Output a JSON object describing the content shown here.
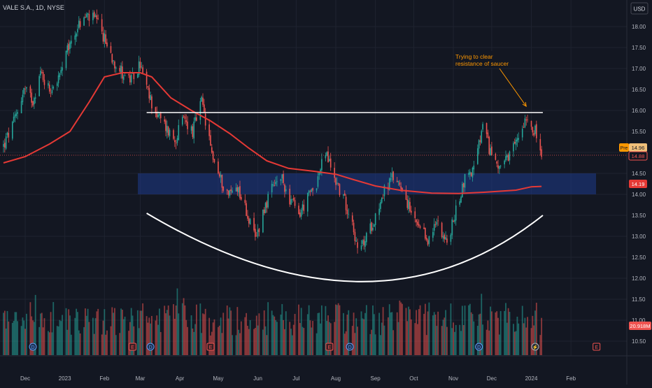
{
  "header": {
    "symbol": "VALE S.A., 1D, NYSE",
    "currency": "USD"
  },
  "annotation": {
    "line1": "Trying to clear",
    "line2": "resistance of saucer"
  },
  "price_tags": {
    "pre_label": "Pre",
    "pre_value": "14.96",
    "last_value": "14.88",
    "ma_value": "14.19",
    "volume_value": "20.918M"
  },
  "colors": {
    "background": "#131722",
    "up": "#26a69a",
    "down": "#ef5350",
    "moving_average": "#e53935",
    "zone_fill": "#1e3a8a",
    "grid": "#1f2330",
    "annotation": "#ff9800",
    "text": "#b2b5be"
  },
  "event_markers": {
    "dividend": "D",
    "earnings": "E",
    "split": "⚡",
    "dividend_dates": [
      "2022-12-07",
      "2023-03-09",
      "2023-08-12",
      "2023-11-21"
    ],
    "earnings_dates": [
      "2023-02-23",
      "2023-04-25",
      "2023-07-27"
    ],
    "split_dates": [
      "2024-01-04"
    ],
    "future_earnings_dates": [
      "2024-02-21"
    ]
  },
  "chart_data": {
    "type": "candlestick",
    "symbol": "VALE S.A.",
    "interval": "1D",
    "exchange": "NYSE",
    "y_range": [
      10.3,
      18.5
    ],
    "x_range": [
      "2022-11-14",
      "2024-02-25"
    ],
    "y_ticks": [
      10.5,
      11.0,
      11.5,
      12.0,
      12.5,
      13.0,
      13.5,
      14.0,
      14.5,
      15.0,
      15.5,
      16.0,
      16.5,
      17.0,
      17.5,
      18.0
    ],
    "x_ticks": [
      {
        "label": "Dec",
        "date": "2022-12-01"
      },
      {
        "label": "2023",
        "date": "2023-01-01"
      },
      {
        "label": "Feb",
        "date": "2023-02-01"
      },
      {
        "label": "Mar",
        "date": "2023-03-01"
      },
      {
        "label": "Apr",
        "date": "2023-04-01"
      },
      {
        "label": "May",
        "date": "2023-05-01"
      },
      {
        "label": "Jun",
        "date": "2023-06-01"
      },
      {
        "label": "Jul",
        "date": "2023-07-01"
      },
      {
        "label": "Aug",
        "date": "2023-08-01"
      },
      {
        "label": "Sep",
        "date": "2023-09-01"
      },
      {
        "label": "Oct",
        "date": "2023-10-01"
      },
      {
        "label": "Nov",
        "date": "2023-11-01"
      },
      {
        "label": "Dec",
        "date": "2023-12-01"
      },
      {
        "label": "2024",
        "date": "2024-01-01"
      },
      {
        "label": "Feb",
        "date": "2024-02-01"
      }
    ],
    "price_path": [
      [
        "2022-11-14",
        15.15
      ],
      [
        "2022-11-22",
        15.7
      ],
      [
        "2022-11-30",
        16.5
      ],
      [
        "2022-12-07",
        16.25
      ],
      [
        "2022-12-13",
        16.9
      ],
      [
        "2022-12-20",
        16.5
      ],
      [
        "2022-12-28",
        16.8
      ],
      [
        "2023-01-04",
        17.5
      ],
      [
        "2023-01-11",
        18.0
      ],
      [
        "2023-01-18",
        18.25
      ],
      [
        "2023-01-25",
        18.15
      ],
      [
        "2023-02-01",
        17.7
      ],
      [
        "2023-02-08",
        17.2
      ],
      [
        "2023-02-15",
        16.9
      ],
      [
        "2023-02-22",
        16.7
      ],
      [
        "2023-03-01",
        17.1
      ],
      [
        "2023-03-07",
        16.4
      ],
      [
        "2023-03-14",
        15.9
      ],
      [
        "2023-03-21",
        15.6
      ],
      [
        "2023-03-28",
        15.3
      ],
      [
        "2023-04-04",
        15.8
      ],
      [
        "2023-04-11",
        15.5
      ],
      [
        "2023-04-18",
        16.2
      ],
      [
        "2023-04-25",
        15.1
      ],
      [
        "2023-05-02",
        14.4
      ],
      [
        "2023-05-09",
        14.0
      ],
      [
        "2023-05-16",
        14.2
      ],
      [
        "2023-05-23",
        13.6
      ],
      [
        "2023-05-30",
        12.9
      ],
      [
        "2023-06-05",
        13.6
      ],
      [
        "2023-06-12",
        14.1
      ],
      [
        "2023-06-19",
        14.4
      ],
      [
        "2023-06-26",
        13.9
      ],
      [
        "2023-07-03",
        13.5
      ],
      [
        "2023-07-10",
        13.9
      ],
      [
        "2023-07-17",
        14.3
      ],
      [
        "2023-07-24",
        15.0
      ],
      [
        "2023-07-31",
        14.4
      ],
      [
        "2023-08-07",
        13.9
      ],
      [
        "2023-08-14",
        13.4
      ],
      [
        "2023-08-18",
        12.6
      ],
      [
        "2023-08-24",
        12.9
      ],
      [
        "2023-09-01",
        13.5
      ],
      [
        "2023-09-08",
        14.1
      ],
      [
        "2023-09-15",
        14.4
      ],
      [
        "2023-09-22",
        14.2
      ],
      [
        "2023-09-29",
        13.5
      ],
      [
        "2023-10-06",
        13.1
      ],
      [
        "2023-10-13",
        12.9
      ],
      [
        "2023-10-20",
        13.4
      ],
      [
        "2023-10-27",
        12.8
      ],
      [
        "2023-11-03",
        13.6
      ],
      [
        "2023-11-10",
        14.4
      ],
      [
        "2023-11-17",
        14.6
      ],
      [
        "2023-11-24",
        15.6
      ],
      [
        "2023-11-30",
        15.0
      ],
      [
        "2023-12-07",
        14.7
      ],
      [
        "2023-12-14",
        14.8
      ],
      [
        "2023-12-21",
        15.3
      ],
      [
        "2023-12-28",
        15.9
      ],
      [
        "2024-01-04",
        15.5
      ],
      [
        "2024-01-09",
        14.88
      ]
    ],
    "moving_average": [
      [
        "2022-11-14",
        14.75
      ],
      [
        "2022-12-01",
        14.9
      ],
      [
        "2022-12-20",
        15.2
      ],
      [
        "2023-01-05",
        15.5
      ],
      [
        "2023-01-20",
        16.2
      ],
      [
        "2023-02-01",
        16.8
      ],
      [
        "2023-02-15",
        16.9
      ],
      [
        "2023-03-01",
        16.9
      ],
      [
        "2023-03-10",
        16.8
      ],
      [
        "2023-03-25",
        16.3
      ],
      [
        "2023-04-10",
        16.0
      ],
      [
        "2023-04-25",
        15.75
      ],
      [
        "2023-05-10",
        15.45
      ],
      [
        "2023-05-25",
        15.1
      ],
      [
        "2023-06-08",
        14.8
      ],
      [
        "2023-06-25",
        14.62
      ],
      [
        "2023-07-15",
        14.55
      ],
      [
        "2023-08-01",
        14.48
      ],
      [
        "2023-08-15",
        14.35
      ],
      [
        "2023-09-01",
        14.2
      ],
      [
        "2023-09-20",
        14.1
      ],
      [
        "2023-10-15",
        14.03
      ],
      [
        "2023-11-05",
        14.02
      ],
      [
        "2023-11-25",
        14.05
      ],
      [
        "2023-12-20",
        14.1
      ],
      [
        "2024-01-01",
        14.18
      ],
      [
        "2024-01-09",
        14.19
      ]
    ],
    "resistance_level": 15.95,
    "resistance_range": [
      "2023-03-06",
      "2024-01-10"
    ],
    "support_zone": [
      14.0,
      14.5
    ],
    "saucer": {
      "start": [
        "2023-03-06",
        13.55
      ],
      "bottom": [
        "2023-08-20",
        11.92
      ],
      "end": [
        "2024-01-10",
        13.5
      ]
    },
    "annotation_target": [
      "2023-12-28",
      16.0
    ]
  }
}
